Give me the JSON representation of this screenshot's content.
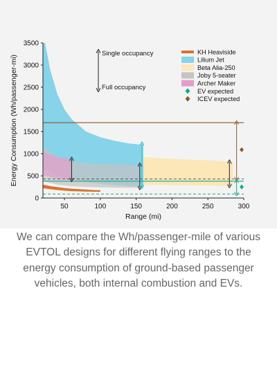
{
  "caption": "We can compare the Wh/passenger-mile of various EVTOL designs for different flying ranges to the energy consumption of ground-based passenger vehicles, both internal combustion and EVs.",
  "chart_data": {
    "type": "area",
    "title": "",
    "xlabel": "Range (mi)",
    "ylabel": "Energy Consumption (Wh/passenger-mi)",
    "xlim": [
      20,
      300
    ],
    "ylim": [
      0,
      3500
    ],
    "xticks": [
      50,
      100,
      150,
      200,
      250,
      300
    ],
    "yticks": [
      0,
      500,
      1000,
      1500,
      2000,
      2500,
      3000,
      3500
    ],
    "grid": false,
    "legend_position": "top-right",
    "occupancy_arrow": {
      "top_label": "Single occupancy",
      "bottom_label": "Full occupancy"
    },
    "series": [
      {
        "name": "KH Heaviside",
        "kind": "line-band",
        "color": "#d9732b",
        "x": [
          20,
          30,
          40,
          50,
          60,
          70,
          80,
          90,
          100
        ],
        "upper": [
          300,
          270,
          245,
          225,
          210,
          200,
          190,
          180,
          175
        ],
        "lower": [
          220,
          200,
          180,
          165,
          155,
          150,
          145,
          140,
          140
        ]
      },
      {
        "name": "Lilium Jet",
        "kind": "band",
        "color": "#86d3ea",
        "x": [
          20,
          30,
          40,
          50,
          60,
          80,
          100,
          120,
          140,
          160
        ],
        "upper": [
          3750,
          2900,
          2350,
          2000,
          1780,
          1500,
          1370,
          1290,
          1230,
          1200
        ],
        "lower": [
          680,
          580,
          510,
          460,
          420,
          360,
          320,
          290,
          265,
          250
        ]
      },
      {
        "name": "Beta Alia-250",
        "kind": "band",
        "color": "#fbe7b8",
        "x": [
          160,
          200,
          250,
          285
        ],
        "upper": [
          920,
          880,
          850,
          820
        ],
        "lower": [
          300,
          290,
          280,
          270
        ]
      },
      {
        "name": "Joby 5-seater",
        "kind": "band",
        "color": "#c4c4c4",
        "x": [
          20,
          40,
          60,
          80,
          100,
          120,
          140,
          155
        ],
        "upper": [
          1150,
          920,
          830,
          790,
          770,
          760,
          755,
          750
        ],
        "lower": [
          380,
          300,
          265,
          250,
          240,
          235,
          230,
          230
        ]
      },
      {
        "name": "Archer Maker",
        "kind": "band",
        "color": "#e59ccb",
        "x": [
          20,
          30,
          40,
          50,
          60
        ],
        "upper": [
          1050,
          980,
          930,
          900,
          880
        ],
        "lower": [
          520,
          470,
          440,
          420,
          410
        ]
      },
      {
        "name": "EV expected",
        "kind": "reference",
        "color": "#13a88c",
        "marker": "diamond",
        "marker_value": 250,
        "lines": [
          380,
          90
        ]
      },
      {
        "name": "ICEV expected",
        "kind": "reference",
        "color": "#8b5a2b",
        "marker": "diamond",
        "marker_value": 1090,
        "lines": [
          1700,
          430
        ]
      }
    ]
  }
}
